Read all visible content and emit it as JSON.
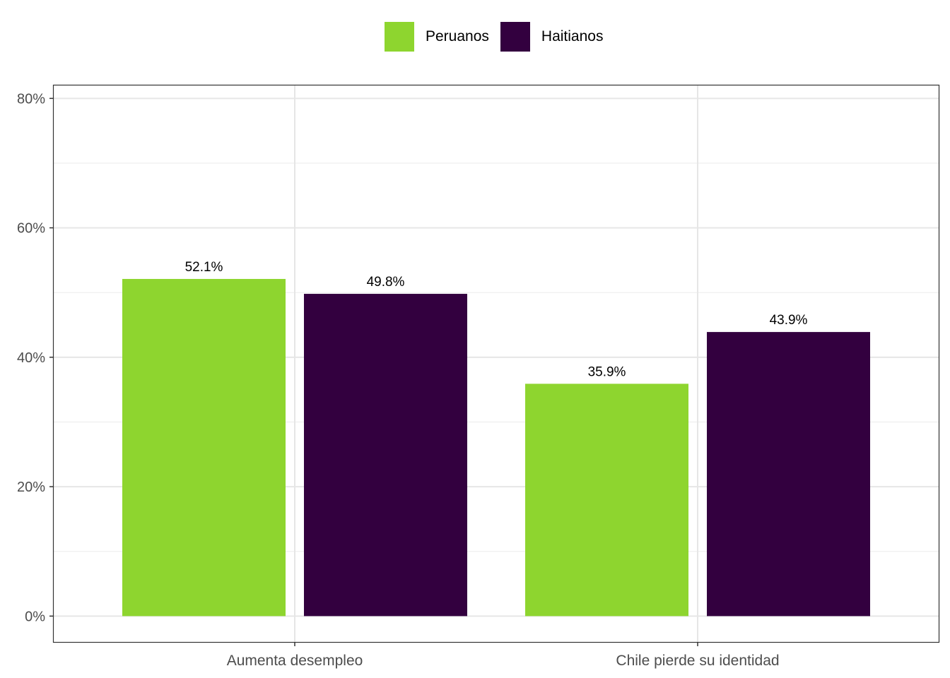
{
  "chart_data": {
    "type": "bar",
    "categories": [
      "Aumenta desempleo",
      "Chile pierde su identidad"
    ],
    "series": [
      {
        "name": "Peruanos",
        "values": [
          52.1,
          35.9
        ],
        "labels": [
          "52.1%",
          "35.9%"
        ],
        "color": "#8ed52f"
      },
      {
        "name": "Haitianos",
        "values": [
          49.8,
          43.9
        ],
        "labels": [
          "49.8%",
          "43.9%"
        ],
        "color": "#33003f"
      }
    ],
    "title": "",
    "xlabel": "",
    "ylabel": "",
    "ylim": [
      -4,
      82
    ],
    "yticks": [
      0,
      20,
      40,
      60,
      80
    ],
    "ytick_labels": [
      "0%",
      "20%",
      "40%",
      "60%",
      "80%"
    ],
    "grid": true,
    "legend_position": "top"
  }
}
